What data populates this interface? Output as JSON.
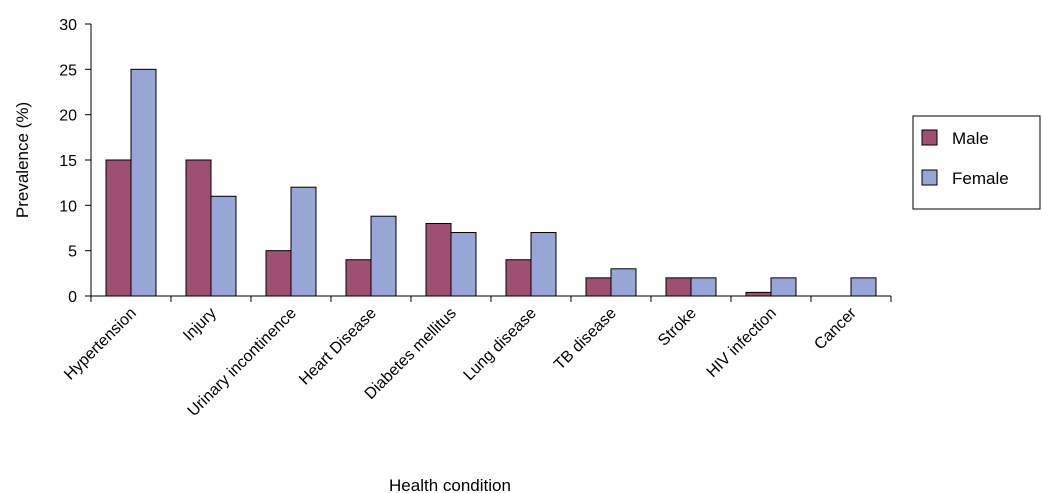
{
  "chart_data": {
    "type": "bar",
    "title": "",
    "xlabel": "Health condition",
    "ylabel": "Prevalence (%)",
    "ylim": [
      0,
      30
    ],
    "yticks": [
      0,
      5,
      10,
      15,
      20,
      25,
      30
    ],
    "grid": false,
    "legend_position": "right",
    "categories": [
      "Hypertension",
      "Injury",
      "Urinary incontinence",
      "Heart Disease",
      "Diabetes mellitus",
      "Lung disease",
      "TB disease",
      "Stroke",
      "HIV infection",
      "Cancer"
    ],
    "series": [
      {
        "name": "Male",
        "color": "#9e4f72",
        "values": [
          15,
          15,
          5,
          4,
          8,
          4,
          2,
          2,
          0.4,
          0
        ]
      },
      {
        "name": "Female",
        "color": "#97a6d6",
        "values": [
          25,
          11,
          12,
          8.8,
          7,
          7,
          3,
          2,
          2,
          2
        ]
      }
    ]
  }
}
